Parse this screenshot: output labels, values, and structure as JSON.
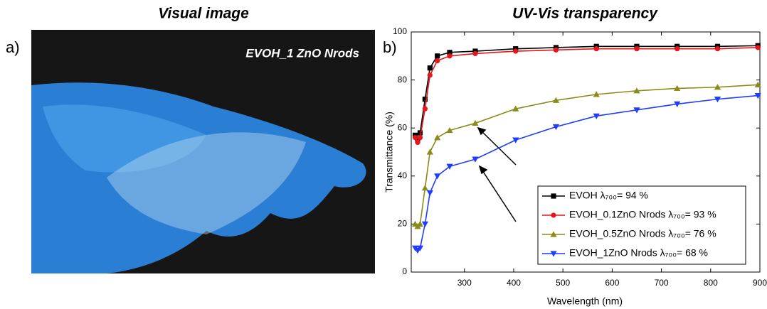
{
  "photo": {
    "title": "Visual image",
    "panel_label": "a)",
    "caption": "EVOH_1 ZnO Nrods"
  },
  "chart_data": {
    "type": "line",
    "title": "UV-Vis transparency",
    "panel_label": "b)",
    "x_label": "Wavelength (nm)",
    "y_label": "Transmittance (%)",
    "x": [
      200,
      205,
      210,
      220,
      230,
      245,
      270,
      322,
      404,
      486,
      568,
      650,
      732,
      814,
      896
    ],
    "series": [
      {
        "name": "EVOH λ₇₀₀= 94 %",
        "color": "#000000",
        "marker": "square",
        "values": [
          57,
          55,
          58,
          72,
          85,
          90,
          91.5,
          92,
          93,
          93.5,
          94,
          94,
          94,
          94,
          94.3
        ]
      },
      {
        "name": "EVOH_0.1ZnO Nrods λ₇₀₀= 93 %",
        "color": "#e8141b",
        "marker": "circle",
        "values": [
          56,
          54,
          56,
          68,
          82,
          88,
          90,
          91,
          92,
          92.5,
          93,
          93,
          93,
          93,
          93.5
        ]
      },
      {
        "name": "EVOH_0.5ZnO Nrods λ₇₀₀= 76 %",
        "color": "#8b8b1a",
        "marker": "triangle-up",
        "values": [
          20,
          19,
          20,
          35,
          50,
          56,
          59,
          62,
          68,
          71.5,
          74,
          75.5,
          76.5,
          77,
          78
        ]
      },
      {
        "name": "EVOH_1ZnO Nrods λ₇₀₀= 68 %",
        "color": "#1f3cff",
        "marker": "triangle-down",
        "values": [
          10,
          9,
          10,
          20,
          33,
          40,
          44,
          47,
          55,
          60.5,
          65,
          67.5,
          70,
          72,
          73.5
        ]
      }
    ],
    "xlim": [
      192,
      900
    ],
    "xticks": [
      300,
      400,
      500,
      600,
      700,
      800,
      900
    ],
    "ylim": [
      0,
      100
    ],
    "yticks": [
      0,
      20,
      40,
      60,
      80,
      100
    ],
    "legend": "lower right"
  }
}
